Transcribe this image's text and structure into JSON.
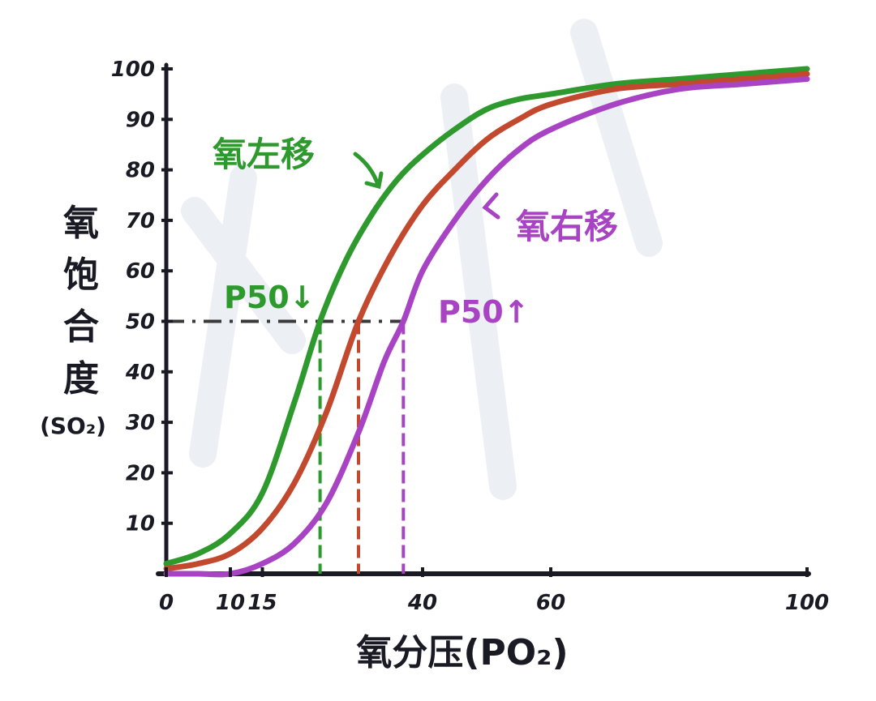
{
  "chart_data": {
    "type": "line",
    "xlabel": "氧分压(PO₂)",
    "ylabel_chars": [
      "氧",
      "饱",
      "合",
      "度"
    ],
    "ylabel_sub": "(SO₂)",
    "xlim": [
      0,
      100
    ],
    "ylim": [
      0,
      100
    ],
    "x_ticks": [
      {
        "value": 0,
        "label": "0"
      },
      {
        "value": 10,
        "label": "10"
      },
      {
        "value": 15,
        "label": "15"
      },
      {
        "value": 40,
        "label": "40"
      },
      {
        "value": 60,
        "label": "60"
      },
      {
        "value": 100,
        "label": "100"
      }
    ],
    "y_ticks": [
      {
        "value": 10,
        "label": "10"
      },
      {
        "value": 20,
        "label": "20"
      },
      {
        "value": 30,
        "label": "30"
      },
      {
        "value": 40,
        "label": "40"
      },
      {
        "value": 50,
        "label": "50"
      },
      {
        "value": 60,
        "label": "60"
      },
      {
        "value": 70,
        "label": "70"
      },
      {
        "value": 80,
        "label": "80"
      },
      {
        "value": 90,
        "label": "90"
      },
      {
        "value": 100,
        "label": "100"
      }
    ],
    "series": [
      {
        "name": "氧左移",
        "color": "#2e9a2e",
        "p50": 24,
        "x": [
          0,
          5,
          10,
          15,
          20,
          24,
          28,
          32,
          36,
          40,
          45,
          50,
          55,
          60,
          70,
          80,
          90,
          100
        ],
        "y": [
          2,
          4,
          8,
          16,
          34,
          50,
          62,
          71,
          78,
          83,
          88,
          92,
          94,
          95,
          97,
          98,
          99,
          100
        ]
      },
      {
        "name": "",
        "color": "#c2482e",
        "p50": 30,
        "x": [
          0,
          5,
          10,
          15,
          20,
          25,
          30,
          35,
          40,
          45,
          50,
          55,
          60,
          70,
          80,
          90,
          100
        ],
        "y": [
          1,
          2,
          4,
          9,
          18,
          32,
          50,
          63,
          73,
          80,
          86,
          90,
          93,
          96,
          97,
          98,
          99
        ]
      },
      {
        "name": "氧右移",
        "color": "#a844c4",
        "p50": 37,
        "x": [
          0,
          5,
          10,
          15,
          20,
          25,
          30,
          34,
          37,
          40,
          45,
          50,
          55,
          60,
          70,
          80,
          90,
          100
        ],
        "y": [
          0,
          0,
          0,
          2,
          6,
          14,
          28,
          42,
          50,
          60,
          70,
          78,
          84,
          88,
          93,
          96,
          97,
          98
        ]
      }
    ],
    "annotations": [
      {
        "text": "氧左移",
        "color": "#2e9a2e"
      },
      {
        "text": "氧右移",
        "color": "#a844c4"
      },
      {
        "text": "P50↓",
        "color": "#2e9a2e"
      },
      {
        "text": "P50↑",
        "color": "#a844c4"
      }
    ],
    "reference_y": 50,
    "axis_color": "#1a1a24",
    "grid": false
  }
}
